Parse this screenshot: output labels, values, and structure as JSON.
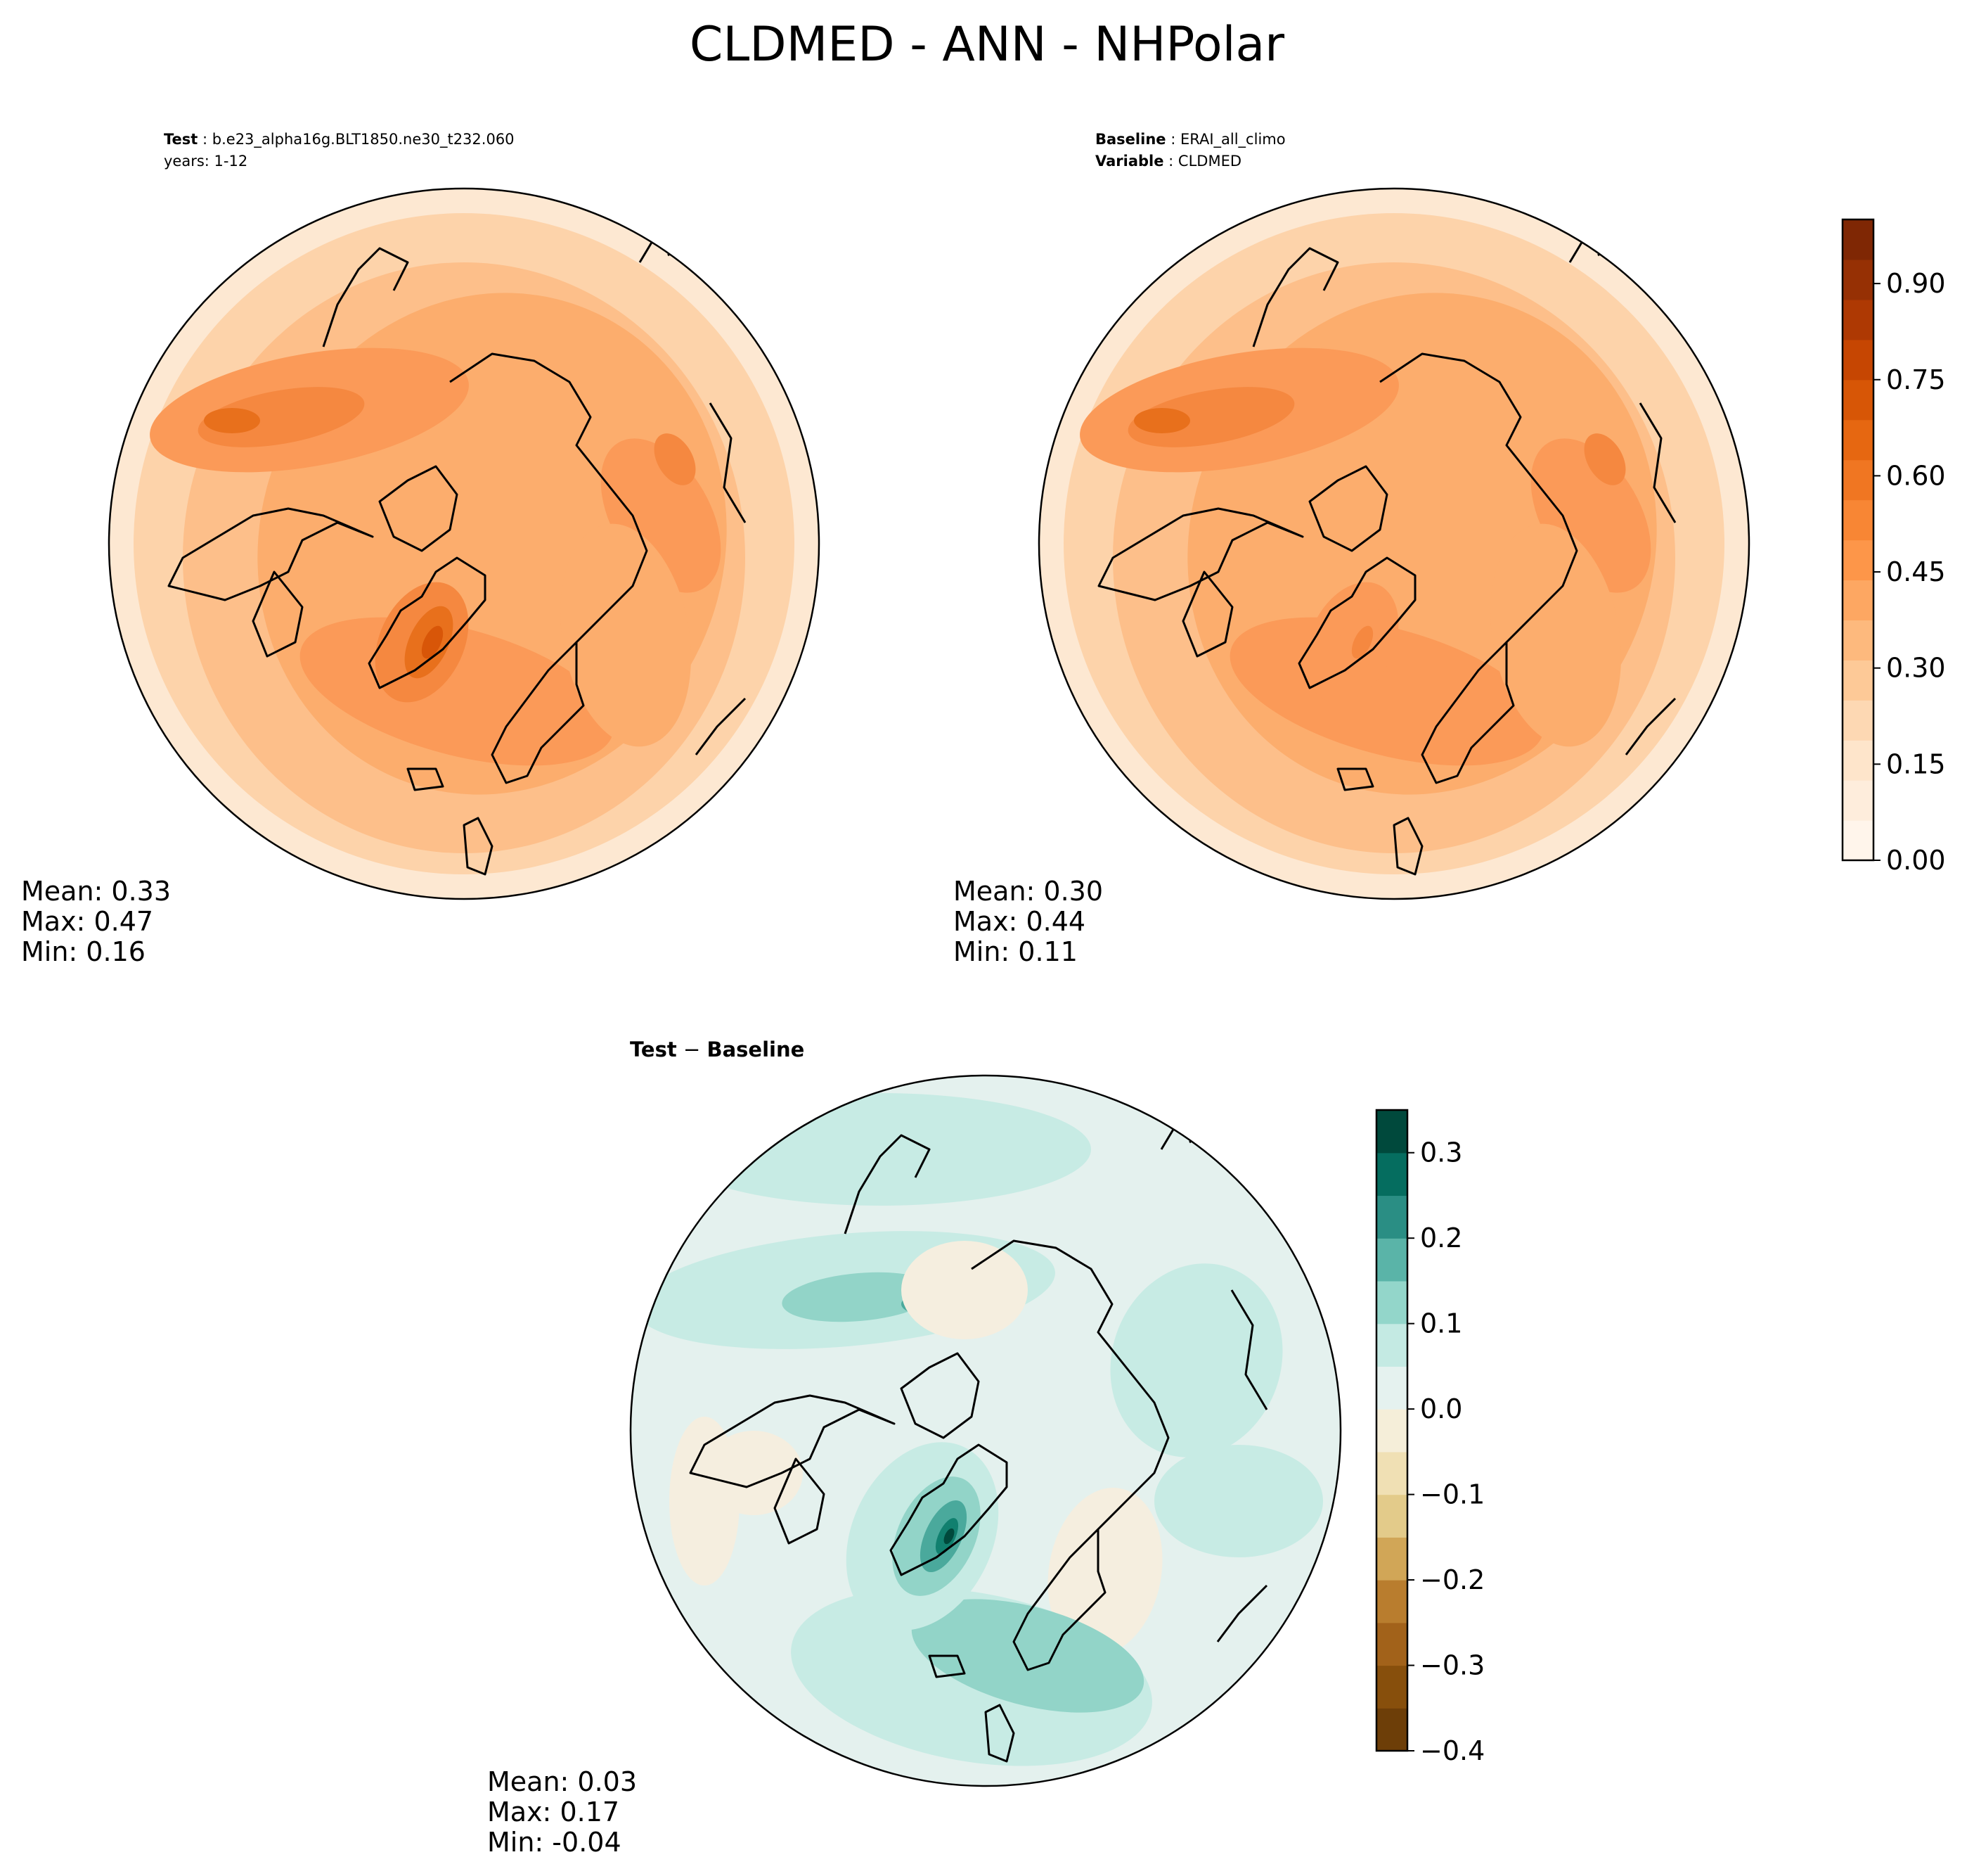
{
  "figure": {
    "title": "CLDMED - ANN - NHPolar"
  },
  "panels": {
    "test": {
      "label_key": "Test",
      "label_value": "b.e23_alpha16g.BLT1850.ne30_t232.060",
      "line2": "years: 1-12",
      "stats": {
        "mean": "Mean:  0.33",
        "max": "Max:  0.47",
        "min": "Min:  0.16"
      }
    },
    "baseline": {
      "label_key": "Baseline",
      "label_value": "ERAI_all_climo",
      "line2_key": "Variable",
      "line2_value": "CLDMED",
      "stats": {
        "mean": "Mean:  0.30",
        "max": "Max:  0.44",
        "min": "Min:  0.11"
      }
    },
    "diff": {
      "title_a": "Test",
      "title_sep": " − ",
      "title_b": "Baseline",
      "stats": {
        "mean": "Mean:  0.03",
        "max": "Max:  0.17",
        "min": "Min: -0.04"
      }
    }
  },
  "colorbars": {
    "main": {
      "range": [
        0.0,
        1.0
      ],
      "tick_values": [
        0.0,
        0.15,
        0.3,
        0.45,
        0.6,
        0.75,
        0.9
      ],
      "tick_labels": [
        "0.00",
        "0.15",
        "0.30",
        "0.45",
        "0.60",
        "0.75",
        "0.90"
      ],
      "colors": [
        "#fff5eb",
        "#feeddc",
        "#fee5cb",
        "#fdd8b3",
        "#fdc997",
        "#fdb97d",
        "#fda762",
        "#fd9649",
        "#f88634",
        "#f07622",
        "#e66711",
        "#d75606",
        "#c64602",
        "#ae3903",
        "#963004",
        "#7f2704"
      ]
    },
    "diff": {
      "range": [
        -0.4,
        0.35
      ],
      "tick_values": [
        -0.4,
        -0.3,
        -0.2,
        -0.1,
        0.0,
        0.1,
        0.2,
        0.3
      ],
      "tick_labels": [
        "−0.4",
        "−0.3",
        "−0.2",
        "−0.1",
        "0.0",
        "0.1",
        "0.2",
        "0.3"
      ],
      "colors": [
        "#6d3e08",
        "#874f0c",
        "#a2621a",
        "#b97d2e",
        "#d1a657",
        "#e3cb8a",
        "#f0e0b4",
        "#f5eed9",
        "#e5f2ef",
        "#c4eae3",
        "#93d6ca",
        "#5ab4a8",
        "#2a8e84",
        "#056d5f",
        "#00493c"
      ]
    }
  },
  "map_colors": {
    "main": [
      "#fde8d2",
      "#fdd3aa",
      "#fdbf8a",
      "#fcad6d",
      "#fb9a58",
      "#f58840",
      "#e8701c",
      "#d85608"
    ],
    "diff": [
      "#f5eedf",
      "#e4f1ee",
      "#c7ebe4",
      "#92d4c8",
      "#4aa99c",
      "#11806f",
      "#00493c"
    ]
  }
}
